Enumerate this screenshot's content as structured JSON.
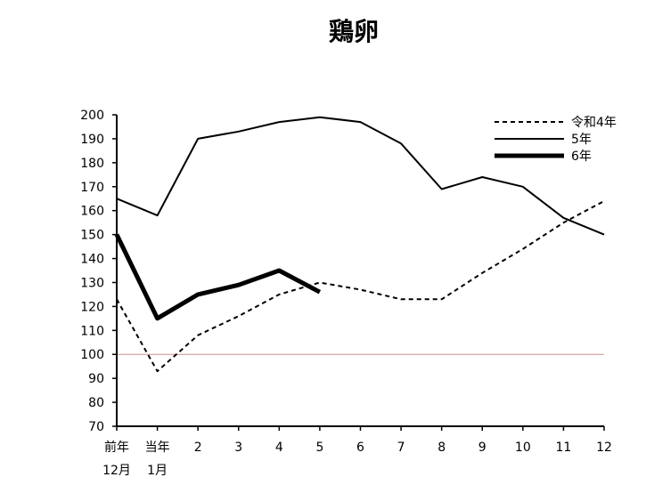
{
  "chart_data": {
    "type": "line",
    "title": "鶏卵",
    "xlabel": "",
    "ylabel": "",
    "ylim": [
      70,
      200
    ],
    "yticks": [
      70,
      80,
      90,
      100,
      110,
      120,
      130,
      140,
      150,
      160,
      170,
      180,
      190,
      200
    ],
    "x_categories": [
      {
        "top": "前年",
        "bottom": "12月"
      },
      {
        "top": "当年",
        "bottom": "1月"
      },
      {
        "top": "2",
        "bottom": ""
      },
      {
        "top": "3",
        "bottom": ""
      },
      {
        "top": "4",
        "bottom": ""
      },
      {
        "top": "5",
        "bottom": ""
      },
      {
        "top": "6",
        "bottom": ""
      },
      {
        "top": "7",
        "bottom": ""
      },
      {
        "top": "8",
        "bottom": ""
      },
      {
        "top": "9",
        "bottom": ""
      },
      {
        "top": "10",
        "bottom": ""
      },
      {
        "top": "11",
        "bottom": ""
      },
      {
        "top": "12",
        "bottom": ""
      }
    ],
    "reference_line": {
      "value": 100,
      "color": "#c9918e"
    },
    "series": [
      {
        "name": "令和4年",
        "style": "dashed",
        "color": "#000000",
        "values": [
          123,
          93,
          108,
          116,
          125,
          130,
          127,
          123,
          123,
          134,
          144,
          155,
          164
        ]
      },
      {
        "name": "5年",
        "style": "solid",
        "color": "#000000",
        "values": [
          165,
          158,
          190,
          193,
          197,
          199,
          197,
          188,
          169,
          174,
          170,
          157,
          150
        ]
      },
      {
        "name": "6年",
        "style": "bold",
        "color": "#000000",
        "values": [
          150,
          115,
          125,
          129,
          135,
          126
        ]
      }
    ],
    "legend_position": "top-right",
    "grid": false
  }
}
